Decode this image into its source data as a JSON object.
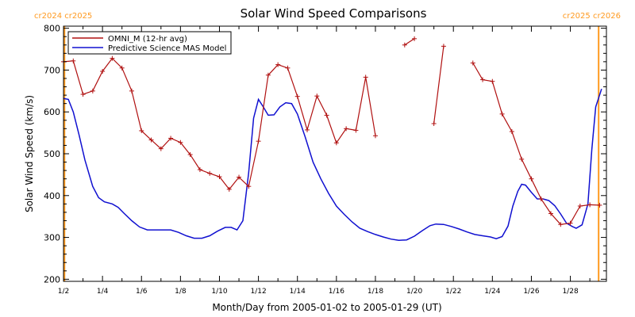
{
  "colors": {
    "omni": "#b01010",
    "model": "#1010d0",
    "carrington": "#ff9a20",
    "axis": "#000000"
  },
  "chart_data": {
    "type": "line",
    "title": "Solar Wind Speed Comparisons",
    "xlabel": "Month/Day from 2005-01-02 to 2005-01-29 (UT)",
    "ylabel": "Solar Wind Speed (km/s)",
    "xlim": [
      0,
      27.85
    ],
    "ylim": [
      195,
      805
    ],
    "x_units": "days since 2005-01-02 00:00 UT",
    "x_ticks": [
      {
        "x": 0,
        "label": "1/2"
      },
      {
        "x": 2,
        "label": "1/4"
      },
      {
        "x": 4,
        "label": "1/6"
      },
      {
        "x": 6,
        "label": "1/8"
      },
      {
        "x": 8,
        "label": "1/10"
      },
      {
        "x": 10,
        "label": "1/12"
      },
      {
        "x": 12,
        "label": "1/14"
      },
      {
        "x": 14,
        "label": "1/16"
      },
      {
        "x": 16,
        "label": "1/18"
      },
      {
        "x": 18,
        "label": "1/20"
      },
      {
        "x": 20,
        "label": "1/22"
      },
      {
        "x": 22,
        "label": "1/24"
      },
      {
        "x": 24,
        "label": "1/26"
      },
      {
        "x": 26,
        "label": "1/28"
      }
    ],
    "y_ticks": [
      200,
      300,
      400,
      500,
      600,
      700,
      800
    ],
    "legend": [
      "OMNI_M (12-hr avg)",
      "Predictive Science MAS Model"
    ],
    "legend_position": "top-left",
    "carrington": [
      {
        "x": 0.05,
        "label": "cr2024 cr2025",
        "side": "left"
      },
      {
        "x": 27.45,
        "label": "cr2025 cr2026",
        "side": "right"
      }
    ],
    "series": [
      {
        "name": "OMNI_M (12-hr avg)",
        "segments": [
          [
            [
              0,
              720
            ],
            [
              0.5,
              722
            ],
            [
              1,
              642
            ],
            [
              1.5,
              650
            ],
            [
              2,
              697
            ],
            [
              2.5,
              728
            ],
            [
              3,
              705
            ],
            [
              3.5,
              650
            ],
            [
              4,
              555
            ],
            [
              4.5,
              533
            ],
            [
              5,
              512
            ],
            [
              5.5,
              537
            ],
            [
              6,
              527
            ],
            [
              6.5,
              498
            ],
            [
              7,
              462
            ],
            [
              7.5,
              453
            ],
            [
              8,
              445
            ],
            [
              8.5,
              415
            ],
            [
              9,
              444
            ],
            [
              9.5,
              422
            ],
            [
              10,
              530
            ],
            [
              10.5,
              688
            ],
            [
              11,
              713
            ],
            [
              11.5,
              705
            ],
            [
              12,
              637
            ],
            [
              12.5,
              557
            ],
            [
              13,
              638
            ],
            [
              13.5,
              592
            ],
            [
              14,
              526
            ],
            [
              14.5,
              560
            ],
            [
              15,
              556
            ],
            [
              15.5,
              683
            ],
            [
              16,
              543
            ]
          ],
          [
            [
              17.5,
              760
            ],
            [
              18,
              775
            ]
          ],
          [
            [
              19,
              572
            ],
            [
              19.5,
              757
            ]
          ],
          [
            [
              21,
              717
            ],
            [
              21.5,
              677
            ],
            [
              22,
              673
            ],
            [
              22.5,
              595
            ],
            [
              23,
              553
            ],
            [
              23.5,
              487
            ],
            [
              24,
              440
            ],
            [
              24.5,
              392
            ],
            [
              25,
              357
            ],
            [
              25.5,
              331
            ],
            [
              26,
              334
            ],
            [
              26.5,
              375
            ],
            [
              27,
              378
            ],
            [
              27.5,
              377
            ]
          ]
        ]
      },
      {
        "name": "Predictive Science MAS Model",
        "points": [
          [
            0,
            632
          ],
          [
            0.25,
            630
          ],
          [
            0.5,
            600
          ],
          [
            0.8,
            545
          ],
          [
            1.1,
            485
          ],
          [
            1.5,
            422
          ],
          [
            1.8,
            395
          ],
          [
            2.1,
            385
          ],
          [
            2.5,
            380
          ],
          [
            2.8,
            372
          ],
          [
            3.1,
            358
          ],
          [
            3.5,
            340
          ],
          [
            3.9,
            325
          ],
          [
            4.3,
            318
          ],
          [
            4.7,
            318
          ],
          [
            5.1,
            318
          ],
          [
            5.5,
            318
          ],
          [
            5.9,
            312
          ],
          [
            6.3,
            304
          ],
          [
            6.7,
            298
          ],
          [
            7.1,
            298
          ],
          [
            7.5,
            304
          ],
          [
            7.9,
            315
          ],
          [
            8.3,
            324
          ],
          [
            8.6,
            324
          ],
          [
            8.9,
            318
          ],
          [
            9.2,
            340
          ],
          [
            9.5,
            455
          ],
          [
            9.75,
            585
          ],
          [
            10.0,
            630
          ],
          [
            10.25,
            612
          ],
          [
            10.5,
            592
          ],
          [
            10.8,
            593
          ],
          [
            11.1,
            612
          ],
          [
            11.4,
            622
          ],
          [
            11.7,
            620
          ],
          [
            12.0,
            595
          ],
          [
            12.4,
            540
          ],
          [
            12.8,
            480
          ],
          [
            13.2,
            440
          ],
          [
            13.6,
            405
          ],
          [
            14.0,
            375
          ],
          [
            14.4,
            355
          ],
          [
            14.8,
            337
          ],
          [
            15.2,
            322
          ],
          [
            15.6,
            314
          ],
          [
            16.0,
            307
          ],
          [
            16.4,
            301
          ],
          [
            16.8,
            296
          ],
          [
            17.2,
            293
          ],
          [
            17.6,
            294
          ],
          [
            18.0,
            303
          ],
          [
            18.4,
            316
          ],
          [
            18.8,
            328
          ],
          [
            19.1,
            332
          ],
          [
            19.5,
            331
          ],
          [
            19.9,
            326
          ],
          [
            20.3,
            320
          ],
          [
            20.7,
            313
          ],
          [
            21.1,
            307
          ],
          [
            21.5,
            304
          ],
          [
            21.9,
            301
          ],
          [
            22.2,
            297
          ],
          [
            22.5,
            302
          ],
          [
            22.8,
            327
          ],
          [
            23.05,
            375
          ],
          [
            23.3,
            410
          ],
          [
            23.5,
            427
          ],
          [
            23.7,
            425
          ],
          [
            24.0,
            408
          ],
          [
            24.3,
            392
          ],
          [
            24.6,
            392
          ],
          [
            24.9,
            388
          ],
          [
            25.2,
            376
          ],
          [
            25.5,
            356
          ],
          [
            25.8,
            334
          ],
          [
            26.1,
            326
          ],
          [
            26.3,
            322
          ],
          [
            26.6,
            330
          ],
          [
            26.9,
            380
          ],
          [
            27.1,
            510
          ],
          [
            27.3,
            612
          ],
          [
            27.6,
            655
          ]
        ]
      }
    ]
  }
}
